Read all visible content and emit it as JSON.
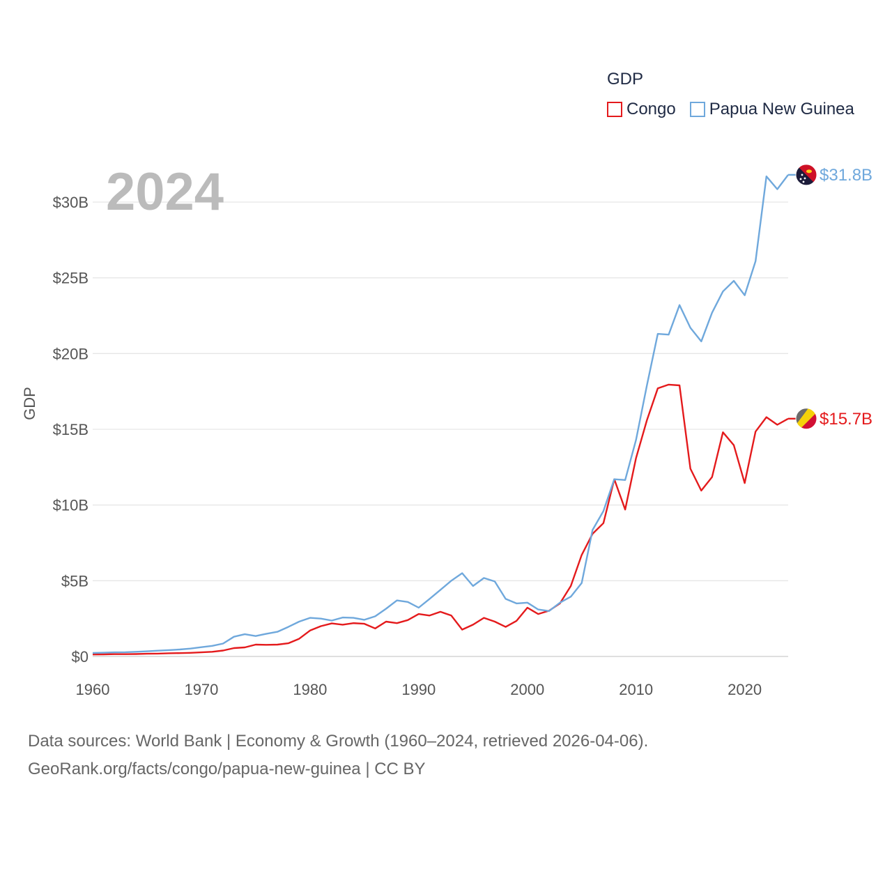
{
  "legend": {
    "title": "GDP",
    "items": [
      {
        "name": "Congo",
        "color": "#e41a1c"
      },
      {
        "name": "Papua New Guinea",
        "color": "#6fa8dc"
      }
    ]
  },
  "source": {
    "line1": "Data sources: World Bank | Economy & Growth (1960–2024, retrieved 2026-04-06).",
    "line2": "GeoRank.org/facts/congo/papua-new-guinea | CC BY"
  },
  "chart_data": {
    "type": "line",
    "title": "GDP",
    "year_label": "2024",
    "xlabel": "",
    "ylabel": "GDP",
    "xlim": [
      1960,
      2024
    ],
    "ylim": [
      0,
      30000000000
    ],
    "x_ticks": [
      {
        "value": 1960,
        "label": "1960"
      },
      {
        "value": 1970,
        "label": "1970"
      },
      {
        "value": 1980,
        "label": "1980"
      },
      {
        "value": 1990,
        "label": "1990"
      },
      {
        "value": 2000,
        "label": "2000"
      },
      {
        "value": 2010,
        "label": "2010"
      },
      {
        "value": 2020,
        "label": "2020"
      }
    ],
    "y_ticks": [
      {
        "value": 0,
        "label": "$0"
      },
      {
        "value": 5,
        "label": "$5B"
      },
      {
        "value": 10,
        "label": "$10B"
      },
      {
        "value": 15,
        "label": "$15B"
      },
      {
        "value": 20,
        "label": "$20B"
      },
      {
        "value": 25,
        "label": "$25B"
      },
      {
        "value": 30,
        "label": "$30B"
      }
    ],
    "value_unit": "billion USD",
    "grid": true,
    "series": [
      {
        "name": "Congo",
        "color": "#e41a1c",
        "end_label": "$15.7B",
        "values": [
          {
            "year": 1960,
            "value": 0.13
          },
          {
            "year": 1961,
            "value": 0.14
          },
          {
            "year": 1962,
            "value": 0.15
          },
          {
            "year": 1963,
            "value": 0.15
          },
          {
            "year": 1964,
            "value": 0.16
          },
          {
            "year": 1965,
            "value": 0.18
          },
          {
            "year": 1966,
            "value": 0.19
          },
          {
            "year": 1967,
            "value": 0.21
          },
          {
            "year": 1968,
            "value": 0.22
          },
          {
            "year": 1969,
            "value": 0.24
          },
          {
            "year": 1970,
            "value": 0.27
          },
          {
            "year": 1971,
            "value": 0.31
          },
          {
            "year": 1972,
            "value": 0.39
          },
          {
            "year": 1973,
            "value": 0.55
          },
          {
            "year": 1974,
            "value": 0.6
          },
          {
            "year": 1975,
            "value": 0.78
          },
          {
            "year": 1976,
            "value": 0.77
          },
          {
            "year": 1977,
            "value": 0.78
          },
          {
            "year": 1978,
            "value": 0.87
          },
          {
            "year": 1979,
            "value": 1.17
          },
          {
            "year": 1980,
            "value": 1.71
          },
          {
            "year": 1981,
            "value": 2.0
          },
          {
            "year": 1982,
            "value": 2.18
          },
          {
            "year": 1983,
            "value": 2.1
          },
          {
            "year": 1984,
            "value": 2.2
          },
          {
            "year": 1985,
            "value": 2.16
          },
          {
            "year": 1986,
            "value": 1.85
          },
          {
            "year": 1987,
            "value": 2.3
          },
          {
            "year": 1988,
            "value": 2.2
          },
          {
            "year": 1989,
            "value": 2.4
          },
          {
            "year": 1990,
            "value": 2.8
          },
          {
            "year": 1991,
            "value": 2.7
          },
          {
            "year": 1992,
            "value": 2.95
          },
          {
            "year": 1993,
            "value": 2.7
          },
          {
            "year": 1994,
            "value": 1.77
          },
          {
            "year": 1995,
            "value": 2.1
          },
          {
            "year": 1996,
            "value": 2.55
          },
          {
            "year": 1997,
            "value": 2.3
          },
          {
            "year": 1998,
            "value": 1.95
          },
          {
            "year": 1999,
            "value": 2.35
          },
          {
            "year": 2000,
            "value": 3.22
          },
          {
            "year": 2001,
            "value": 2.8
          },
          {
            "year": 2002,
            "value": 3.02
          },
          {
            "year": 2003,
            "value": 3.5
          },
          {
            "year": 2004,
            "value": 4.65
          },
          {
            "year": 2005,
            "value": 6.7
          },
          {
            "year": 2006,
            "value": 8.1
          },
          {
            "year": 2007,
            "value": 8.8
          },
          {
            "year": 2008,
            "value": 11.7
          },
          {
            "year": 2009,
            "value": 9.7
          },
          {
            "year": 2010,
            "value": 13.1
          },
          {
            "year": 2011,
            "value": 15.6
          },
          {
            "year": 2012,
            "value": 17.7
          },
          {
            "year": 2013,
            "value": 17.95
          },
          {
            "year": 2014,
            "value": 17.9
          },
          {
            "year": 2015,
            "value": 12.4
          },
          {
            "year": 2016,
            "value": 10.95
          },
          {
            "year": 2017,
            "value": 11.85
          },
          {
            "year": 2018,
            "value": 14.8
          },
          {
            "year": 2019,
            "value": 13.95
          },
          {
            "year": 2020,
            "value": 11.45
          },
          {
            "year": 2021,
            "value": 14.85
          },
          {
            "year": 2022,
            "value": 15.8
          },
          {
            "year": 2023,
            "value": 15.3
          },
          {
            "year": 2024,
            "value": 15.7
          }
        ]
      },
      {
        "name": "Papua New Guinea",
        "color": "#6fa8dc",
        "end_label": "$31.8B",
        "values": [
          {
            "year": 1960,
            "value": 0.23
          },
          {
            "year": 1961,
            "value": 0.25
          },
          {
            "year": 1962,
            "value": 0.27
          },
          {
            "year": 1963,
            "value": 0.28
          },
          {
            "year": 1964,
            "value": 0.31
          },
          {
            "year": 1965,
            "value": 0.34
          },
          {
            "year": 1966,
            "value": 0.38
          },
          {
            "year": 1967,
            "value": 0.42
          },
          {
            "year": 1968,
            "value": 0.46
          },
          {
            "year": 1969,
            "value": 0.52
          },
          {
            "year": 1970,
            "value": 0.61
          },
          {
            "year": 1971,
            "value": 0.7
          },
          {
            "year": 1972,
            "value": 0.85
          },
          {
            "year": 1973,
            "value": 1.3
          },
          {
            "year": 1974,
            "value": 1.47
          },
          {
            "year": 1975,
            "value": 1.35
          },
          {
            "year": 1976,
            "value": 1.5
          },
          {
            "year": 1977,
            "value": 1.63
          },
          {
            "year": 1978,
            "value": 1.95
          },
          {
            "year": 1979,
            "value": 2.3
          },
          {
            "year": 1980,
            "value": 2.55
          },
          {
            "year": 1981,
            "value": 2.5
          },
          {
            "year": 1982,
            "value": 2.37
          },
          {
            "year": 1983,
            "value": 2.57
          },
          {
            "year": 1984,
            "value": 2.55
          },
          {
            "year": 1985,
            "value": 2.42
          },
          {
            "year": 1986,
            "value": 2.65
          },
          {
            "year": 1987,
            "value": 3.15
          },
          {
            "year": 1988,
            "value": 3.7
          },
          {
            "year": 1989,
            "value": 3.6
          },
          {
            "year": 1990,
            "value": 3.22
          },
          {
            "year": 1991,
            "value": 3.8
          },
          {
            "year": 1992,
            "value": 4.4
          },
          {
            "year": 1993,
            "value": 5.0
          },
          {
            "year": 1994,
            "value": 5.5
          },
          {
            "year": 1995,
            "value": 4.65
          },
          {
            "year": 1996,
            "value": 5.18
          },
          {
            "year": 1997,
            "value": 4.95
          },
          {
            "year": 1998,
            "value": 3.8
          },
          {
            "year": 1999,
            "value": 3.5
          },
          {
            "year": 2000,
            "value": 3.55
          },
          {
            "year": 2001,
            "value": 3.1
          },
          {
            "year": 2002,
            "value": 3.0
          },
          {
            "year": 2003,
            "value": 3.55
          },
          {
            "year": 2004,
            "value": 3.95
          },
          {
            "year": 2005,
            "value": 4.85
          },
          {
            "year": 2006,
            "value": 8.35
          },
          {
            "year": 2007,
            "value": 9.6
          },
          {
            "year": 2008,
            "value": 11.7
          },
          {
            "year": 2009,
            "value": 11.65
          },
          {
            "year": 2010,
            "value": 14.3
          },
          {
            "year": 2011,
            "value": 17.9
          },
          {
            "year": 2012,
            "value": 21.3
          },
          {
            "year": 2013,
            "value": 21.25
          },
          {
            "year": 2014,
            "value": 23.2
          },
          {
            "year": 2015,
            "value": 21.7
          },
          {
            "year": 2016,
            "value": 20.8
          },
          {
            "year": 2017,
            "value": 22.7
          },
          {
            "year": 2018,
            "value": 24.1
          },
          {
            "year": 2019,
            "value": 24.8
          },
          {
            "year": 2020,
            "value": 23.85
          },
          {
            "year": 2021,
            "value": 26.1
          },
          {
            "year": 2022,
            "value": 31.7
          },
          {
            "year": 2023,
            "value": 30.85
          },
          {
            "year": 2024,
            "value": 31.8
          }
        ]
      }
    ]
  }
}
